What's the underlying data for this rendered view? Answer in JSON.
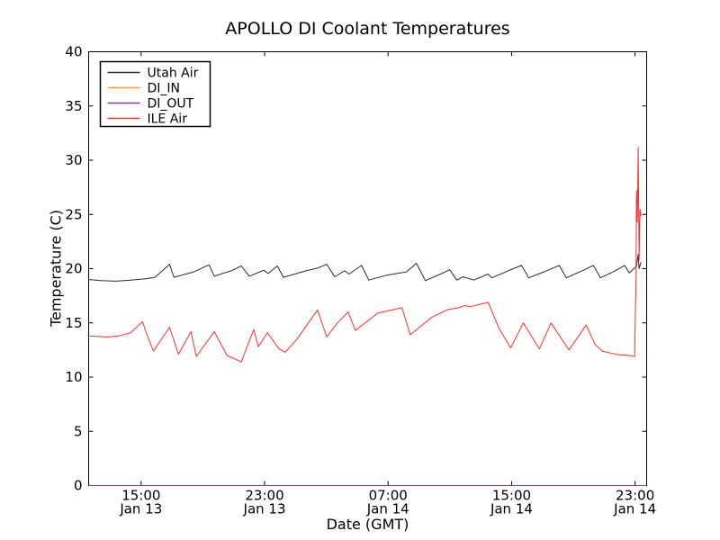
{
  "window": {
    "background": "#ffffff",
    "axes_color": "#000000"
  },
  "chart_data": {
    "type": "line",
    "title": "APOLLO DI Coolant Temperatures",
    "xlabel": "Date (GMT)",
    "ylabel": "Temperature (C)",
    "x_unit": "hours since Jan 13 00:00 GMT",
    "xlim": [
      11.6,
      47.75
    ],
    "ylim": [
      0,
      40
    ],
    "grid": false,
    "legend_position": "upper left",
    "yticks": [
      0,
      5,
      10,
      15,
      20,
      25,
      30,
      35,
      40
    ],
    "xticks": [
      {
        "value": 15,
        "line1": "15:00",
        "line2": "Jan 13"
      },
      {
        "value": 23,
        "line1": "23:00",
        "line2": "Jan 13"
      },
      {
        "value": 31,
        "line1": "07:00",
        "line2": "Jan 14"
      },
      {
        "value": 39,
        "line1": "15:00",
        "line2": "Jan 14"
      },
      {
        "value": 47,
        "line1": "23:00",
        "line2": "Jan 14"
      }
    ],
    "series": [
      {
        "name": "Utah Air",
        "color": "#2b2b2b",
        "width": 1,
        "x": [
          11.6,
          12.41,
          13.35,
          14.33,
          15.21,
          15.9,
          16.84,
          17.13,
          18.41,
          19.4,
          19.74,
          20.91,
          21.49,
          22.01,
          22.94,
          23.23,
          23.82,
          24.22,
          25.68,
          26.43,
          27.02,
          27.54,
          28.18,
          28.47,
          29.28,
          29.75,
          30.91,
          32.19,
          32.83,
          33.41,
          34.4,
          34.99,
          35.45,
          35.86,
          36.55,
          37.49,
          37.72,
          38.77,
          39.64,
          40.11,
          41.1,
          42.08,
          42.55,
          43.42,
          44.3,
          44.76,
          45.58,
          46.33,
          46.62,
          46.92,
          47.09,
          47.2,
          47.26,
          47.38
        ],
        "y": [
          19.0,
          18.9,
          18.85,
          18.95,
          19.05,
          19.2,
          20.4,
          19.2,
          19.7,
          20.35,
          19.3,
          19.85,
          20.25,
          19.3,
          19.85,
          19.55,
          20.25,
          19.2,
          19.8,
          20.05,
          20.4,
          19.25,
          19.8,
          19.5,
          20.3,
          18.95,
          19.4,
          19.7,
          20.5,
          18.9,
          19.5,
          19.9,
          18.95,
          19.25,
          18.95,
          19.5,
          19.15,
          19.8,
          20.3,
          19.15,
          19.7,
          20.3,
          19.15,
          19.7,
          20.3,
          19.15,
          19.7,
          20.3,
          19.6,
          20.0,
          20.2,
          21.3,
          20.0,
          20.6
        ]
      },
      {
        "name": "DI_IN",
        "color": "#ffa500",
        "width": 1,
        "x": [
          11.6,
          47.75
        ],
        "y": [
          0,
          0
        ]
      },
      {
        "name": "DI_OUT",
        "color": "#8e3a8e",
        "width": 1,
        "x": [
          11.6,
          47.75
        ],
        "y": [
          0,
          0
        ]
      },
      {
        "name": "ILE Air",
        "color": "#ff2e2e",
        "width": 1,
        "x": [
          11.6,
          12.76,
          13.58,
          14.33,
          15.09,
          15.38,
          15.79,
          16.84,
          17.42,
          18.23,
          18.58,
          19.74,
          20.56,
          21.49,
          22.3,
          22.59,
          23.18,
          23.93,
          24.34,
          25.1,
          26.43,
          27.02,
          27.71,
          28.41,
          28.88,
          30.33,
          31.9,
          32.43,
          33.82,
          34.81,
          35.57,
          35.97,
          36.32,
          37.49,
          38.18,
          38.94,
          39.76,
          40.8,
          41.56,
          42.72,
          43.83,
          44.41,
          44.88,
          45.75,
          46.62,
          46.97,
          47.06,
          47.09,
          47.15,
          47.2,
          47.26,
          47.32,
          47.38
        ],
        "y": [
          13.8,
          13.7,
          13.8,
          14.1,
          15.1,
          13.9,
          12.4,
          14.6,
          12.1,
          14.2,
          11.9,
          14.2,
          12.0,
          11.4,
          14.4,
          12.8,
          14.1,
          12.6,
          12.3,
          13.5,
          16.2,
          13.7,
          15.0,
          16.0,
          14.3,
          15.9,
          16.4,
          13.9,
          15.5,
          16.2,
          16.4,
          16.6,
          16.5,
          16.9,
          14.5,
          12.7,
          15.0,
          12.6,
          15.0,
          12.5,
          14.8,
          13.0,
          12.4,
          12.1,
          12.0,
          11.9,
          19.0,
          27.2,
          24.3,
          31.2,
          20.8,
          25.5,
          24.8
        ]
      }
    ]
  }
}
